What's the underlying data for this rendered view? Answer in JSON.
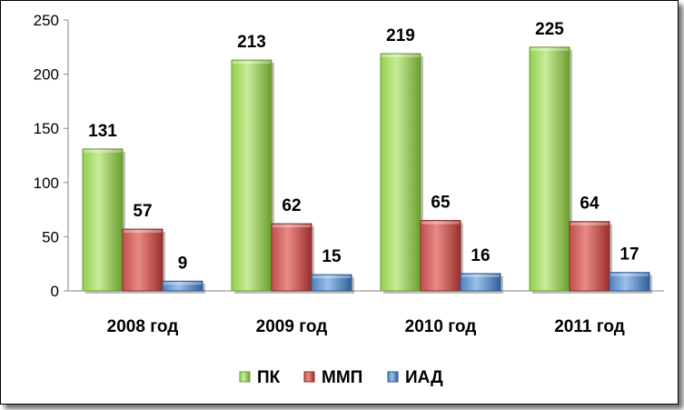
{
  "chart_data": {
    "type": "bar",
    "categories": [
      "2008 год",
      "2009 год",
      "2010 год",
      "2011 год"
    ],
    "series": [
      {
        "name": "ПК",
        "values": [
          131,
          213,
          219,
          225
        ],
        "color": "#92d050",
        "edge": "#6e9c34",
        "light": "#c8ec98",
        "dark": "#6a9e2e"
      },
      {
        "name": "ММП",
        "values": [
          57,
          62,
          65,
          64
        ],
        "color": "#c0504d",
        "edge": "#8c2d2a",
        "light": "#e88a87",
        "dark": "#9a2e2c"
      },
      {
        "name": "ИАД",
        "values": [
          9,
          15,
          16,
          17
        ],
        "color": "#4f81bd",
        "edge": "#2e5a8f",
        "light": "#9cc0ec",
        "dark": "#2f5f99"
      }
    ],
    "ylim": [
      0,
      250
    ],
    "yticks": [
      0,
      50,
      100,
      150,
      200,
      250
    ],
    "grid": false,
    "legend": "bottom",
    "title": "",
    "xlabel": "",
    "ylabel": ""
  }
}
